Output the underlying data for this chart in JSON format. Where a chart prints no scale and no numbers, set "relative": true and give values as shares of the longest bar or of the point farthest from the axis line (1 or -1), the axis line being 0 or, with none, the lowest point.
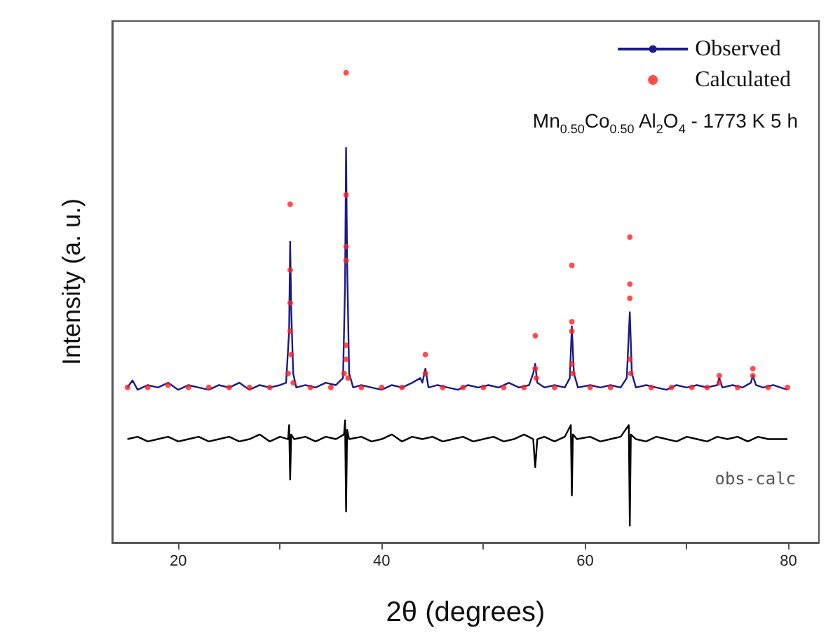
{
  "chart_data": {
    "type": "line",
    "xlabel": "2θ (degrees)",
    "ylabel": "Intensity (a. u.)",
    "relative": true,
    "xlim": [
      13.5,
      83
    ],
    "xticks": [
      20,
      {
        "value": 30,
        "label": null
      },
      40,
      {
        "value": 50,
        "label": null
      },
      60,
      {
        "value": 70,
        "label": null
      },
      80
    ],
    "legend": "top right",
    "grid": false,
    "annotations": [
      "Mn$_{0.50}$Co$_{0.50}$ Al$_{2}$O$_{4}$ - 1773 K  5 h"
    ],
    "series": [
      {
        "name": "Observed",
        "color": "#1a1a8c",
        "x": [
          15,
          15.5,
          16,
          17,
          18,
          19,
          20,
          21,
          22,
          23,
          24,
          25,
          26,
          27,
          28,
          29,
          30,
          30.6,
          30.9,
          31.0,
          31.1,
          31.3,
          31.6,
          32.5,
          33.5,
          34.5,
          35.5,
          36.2,
          36.4,
          36.5,
          36.6,
          36.8,
          37.2,
          38,
          39,
          40,
          41,
          42,
          43,
          43.8,
          44.0,
          44.3,
          44.6,
          45.5,
          46.5,
          47.5,
          48.5,
          49.5,
          50.5,
          51.5,
          52.5,
          53.5,
          54.5,
          54.9,
          55.1,
          55.3,
          56,
          57,
          58,
          58.5,
          58.7,
          58.9,
          59.3,
          60.5,
          61.5,
          62.5,
          63.5,
          64.1,
          64.4,
          64.6,
          65,
          66,
          67,
          68,
          69,
          70,
          71,
          72,
          73,
          73.2,
          73.5,
          74.5,
          75.5,
          76.3,
          76.5,
          76.8,
          77.5,
          78.5,
          79.9
        ],
        "values": [
          0.33,
          0.345,
          0.325,
          0.335,
          0.33,
          0.34,
          0.325,
          0.335,
          0.33,
          0.325,
          0.335,
          0.33,
          0.34,
          0.325,
          0.335,
          0.33,
          0.335,
          0.34,
          0.45,
          0.64,
          0.5,
          0.36,
          0.33,
          0.335,
          0.33,
          0.34,
          0.335,
          0.35,
          0.55,
          0.84,
          0.6,
          0.36,
          0.33,
          0.335,
          0.33,
          0.325,
          0.335,
          0.33,
          0.34,
          0.35,
          0.34,
          0.37,
          0.33,
          0.335,
          0.33,
          0.325,
          0.335,
          0.33,
          0.335,
          0.33,
          0.34,
          0.33,
          0.335,
          0.36,
          0.38,
          0.34,
          0.33,
          0.335,
          0.33,
          0.35,
          0.46,
          0.36,
          0.33,
          0.335,
          0.33,
          0.335,
          0.33,
          0.35,
          0.49,
          0.36,
          0.33,
          0.335,
          0.33,
          0.325,
          0.335,
          0.33,
          0.335,
          0.33,
          0.335,
          0.35,
          0.33,
          0.335,
          0.33,
          0.34,
          0.355,
          0.335,
          0.33,
          0.335,
          0.325
        ]
      },
      {
        "name": "Calculated",
        "type": "scatter",
        "marker": "circle",
        "color": "#ff2020",
        "x": [
          15,
          17,
          19,
          21,
          23,
          25,
          27,
          29,
          30.8,
          31.0,
          31.0,
          31.0,
          31.0,
          31.1,
          31.3,
          33,
          35,
          36.3,
          36.5,
          36.5,
          36.5,
          36.5,
          36.5,
          36.5,
          36.7,
          38,
          40,
          42,
          44.3,
          44.3,
          46,
          48,
          50,
          52,
          54,
          55.1,
          55.1,
          55.2,
          57,
          58.7,
          58.7,
          58.7,
          58.7,
          58.8,
          60.5,
          62.5,
          64.4,
          64.4,
          64.4,
          64.4,
          64.5,
          66.5,
          68.5,
          70.5,
          72,
          73.2,
          73.2,
          75,
          76.5,
          76.5,
          78,
          79.9
        ],
        "values": [
          0.33,
          0.33,
          0.335,
          0.33,
          0.33,
          0.33,
          0.33,
          0.33,
          0.36,
          0.72,
          0.58,
          0.51,
          0.45,
          0.4,
          0.34,
          0.33,
          0.33,
          0.36,
          1.0,
          0.74,
          0.63,
          0.6,
          0.42,
          0.39,
          0.35,
          0.33,
          0.33,
          0.33,
          0.4,
          0.36,
          0.33,
          0.33,
          0.33,
          0.33,
          0.33,
          0.44,
          0.37,
          0.35,
          0.33,
          0.59,
          0.47,
          0.45,
          0.38,
          0.36,
          0.33,
          0.33,
          0.65,
          0.55,
          0.52,
          0.39,
          0.36,
          0.33,
          0.33,
          0.33,
          0.33,
          0.355,
          0.34,
          0.33,
          0.37,
          0.355,
          0.33,
          0.33
        ]
      },
      {
        "name": "obs-calc",
        "color": "#000000",
        "x": [
          15,
          16,
          17,
          18,
          19,
          20,
          21,
          22,
          23,
          24,
          25,
          26,
          27,
          28,
          29,
          30,
          30.8,
          30.9,
          31.0,
          31.1,
          31.4,
          32.5,
          33.5,
          34.5,
          35.5,
          36.3,
          36.4,
          36.5,
          36.6,
          36.8,
          38,
          39,
          40,
          41,
          42,
          43,
          44,
          45,
          46,
          47,
          48,
          49,
          50,
          51,
          52,
          53,
          54,
          54.9,
          55.1,
          55.3,
          56,
          57,
          58,
          58.6,
          58.7,
          58.8,
          59.2,
          60.5,
          61.5,
          62.5,
          63.5,
          64.3,
          64.4,
          64.5,
          65,
          66,
          67,
          68,
          69,
          70,
          71,
          72,
          73,
          74,
          75,
          76,
          77,
          78,
          79.9
        ],
        "values": [
          0.22,
          0.225,
          0.215,
          0.22,
          0.225,
          0.215,
          0.22,
          0.225,
          0.215,
          0.22,
          0.225,
          0.215,
          0.22,
          0.23,
          0.215,
          0.225,
          0.22,
          0.25,
          0.134,
          0.23,
          0.22,
          0.225,
          0.215,
          0.225,
          0.22,
          0.23,
          0.26,
          0.066,
          0.24,
          0.22,
          0.225,
          0.215,
          0.22,
          0.23,
          0.215,
          0.225,
          0.22,
          0.225,
          0.215,
          0.22,
          0.225,
          0.215,
          0.22,
          0.225,
          0.215,
          0.22,
          0.23,
          0.22,
          0.16,
          0.22,
          0.225,
          0.215,
          0.225,
          0.25,
          0.1,
          0.23,
          0.22,
          0.225,
          0.215,
          0.22,
          0.225,
          0.25,
          0.036,
          0.23,
          0.22,
          0.215,
          0.225,
          0.22,
          0.215,
          0.225,
          0.22,
          0.215,
          0.225,
          0.22,
          0.225,
          0.215,
          0.225,
          0.22,
          0.22
        ]
      }
    ]
  }
}
